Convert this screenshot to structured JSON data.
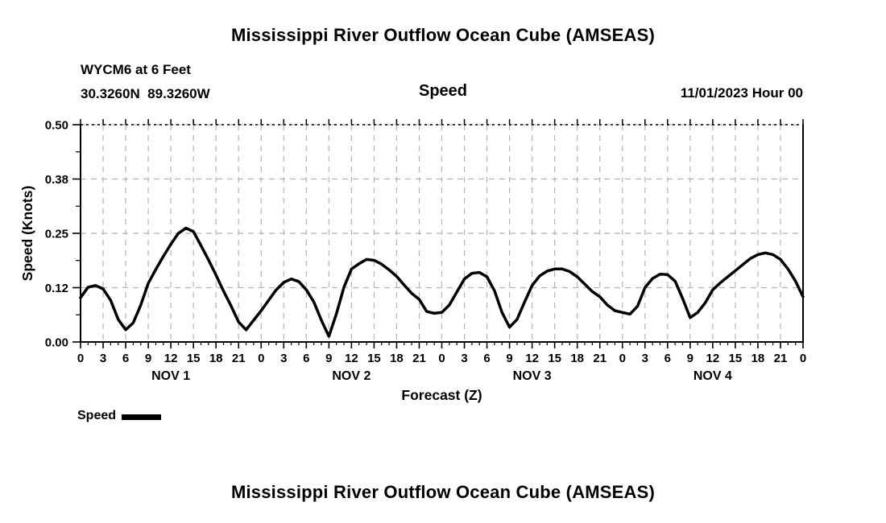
{
  "page": {
    "top_title": "Mississippi River Outflow Ocean Cube (AMSEAS)",
    "bottom_title": "Mississippi River Outflow Ocean Cube (AMSEAS)"
  },
  "header": {
    "station": "WYCM6 at 6 Feet",
    "coordinates": "30.3260N  89.3260W",
    "panel_title": "Speed",
    "run_date": "11/01/2023 Hour 00"
  },
  "legend": {
    "label": "Speed",
    "swatch_color": "#000000"
  },
  "chart_data": {
    "type": "line",
    "title": "Speed",
    "xlabel": "Forecast (Z)",
    "ylabel": "Speed (Knots)",
    "ylim": [
      0,
      0.5
    ],
    "xlim_hours": [
      0,
      96
    ],
    "grid": true,
    "grid_color": "#b5b5b5",
    "axis_color": "#000000",
    "line_color": "#000000",
    "line_width": 3.5,
    "y_ticks": [
      {
        "value": 0.0,
        "label": "0.00"
      },
      {
        "value": 0.125,
        "label": "0.12"
      },
      {
        "value": 0.25,
        "label": "0.25"
      },
      {
        "value": 0.375,
        "label": "0.38"
      },
      {
        "value": 0.5,
        "label": "0.50"
      }
    ],
    "y_minor_tick_values": [
      0.0625,
      0.1875,
      0.3125,
      0.4375
    ],
    "x_major_tick_hours": 3,
    "x_minor_tick_hours": 1,
    "x_label_mod": 24,
    "day_labels": [
      {
        "center_hour": 12,
        "label": "NOV 1"
      },
      {
        "center_hour": 36,
        "label": "NOV 2"
      },
      {
        "center_hour": 60,
        "label": "NOV 3"
      },
      {
        "center_hour": 84,
        "label": "NOV 4"
      }
    ],
    "series": [
      {
        "name": "Speed",
        "x_start_hour": 0,
        "x_step_hours": 1,
        "values": [
          0.102,
          0.126,
          0.13,
          0.122,
          0.096,
          0.052,
          0.028,
          0.044,
          0.085,
          0.135,
          0.167,
          0.197,
          0.225,
          0.25,
          0.262,
          0.254,
          0.222,
          0.189,
          0.154,
          0.117,
          0.083,
          0.046,
          0.028,
          0.05,
          0.072,
          0.096,
          0.12,
          0.137,
          0.145,
          0.139,
          0.12,
          0.092,
          0.05,
          0.013,
          0.065,
          0.126,
          0.168,
          0.18,
          0.19,
          0.188,
          0.179,
          0.166,
          0.151,
          0.131,
          0.112,
          0.098,
          0.07,
          0.066,
          0.068,
          0.085,
          0.115,
          0.145,
          0.158,
          0.16,
          0.15,
          0.118,
          0.068,
          0.034,
          0.052,
          0.092,
          0.13,
          0.152,
          0.163,
          0.168,
          0.168,
          0.162,
          0.15,
          0.133,
          0.116,
          0.104,
          0.085,
          0.072,
          0.068,
          0.064,
          0.082,
          0.125,
          0.146,
          0.156,
          0.155,
          0.14,
          0.1,
          0.056,
          0.068,
          0.09,
          0.12,
          0.136,
          0.15,
          0.164,
          0.178,
          0.192,
          0.201,
          0.205,
          0.201,
          0.19,
          0.168,
          0.14,
          0.104
        ]
      }
    ]
  }
}
